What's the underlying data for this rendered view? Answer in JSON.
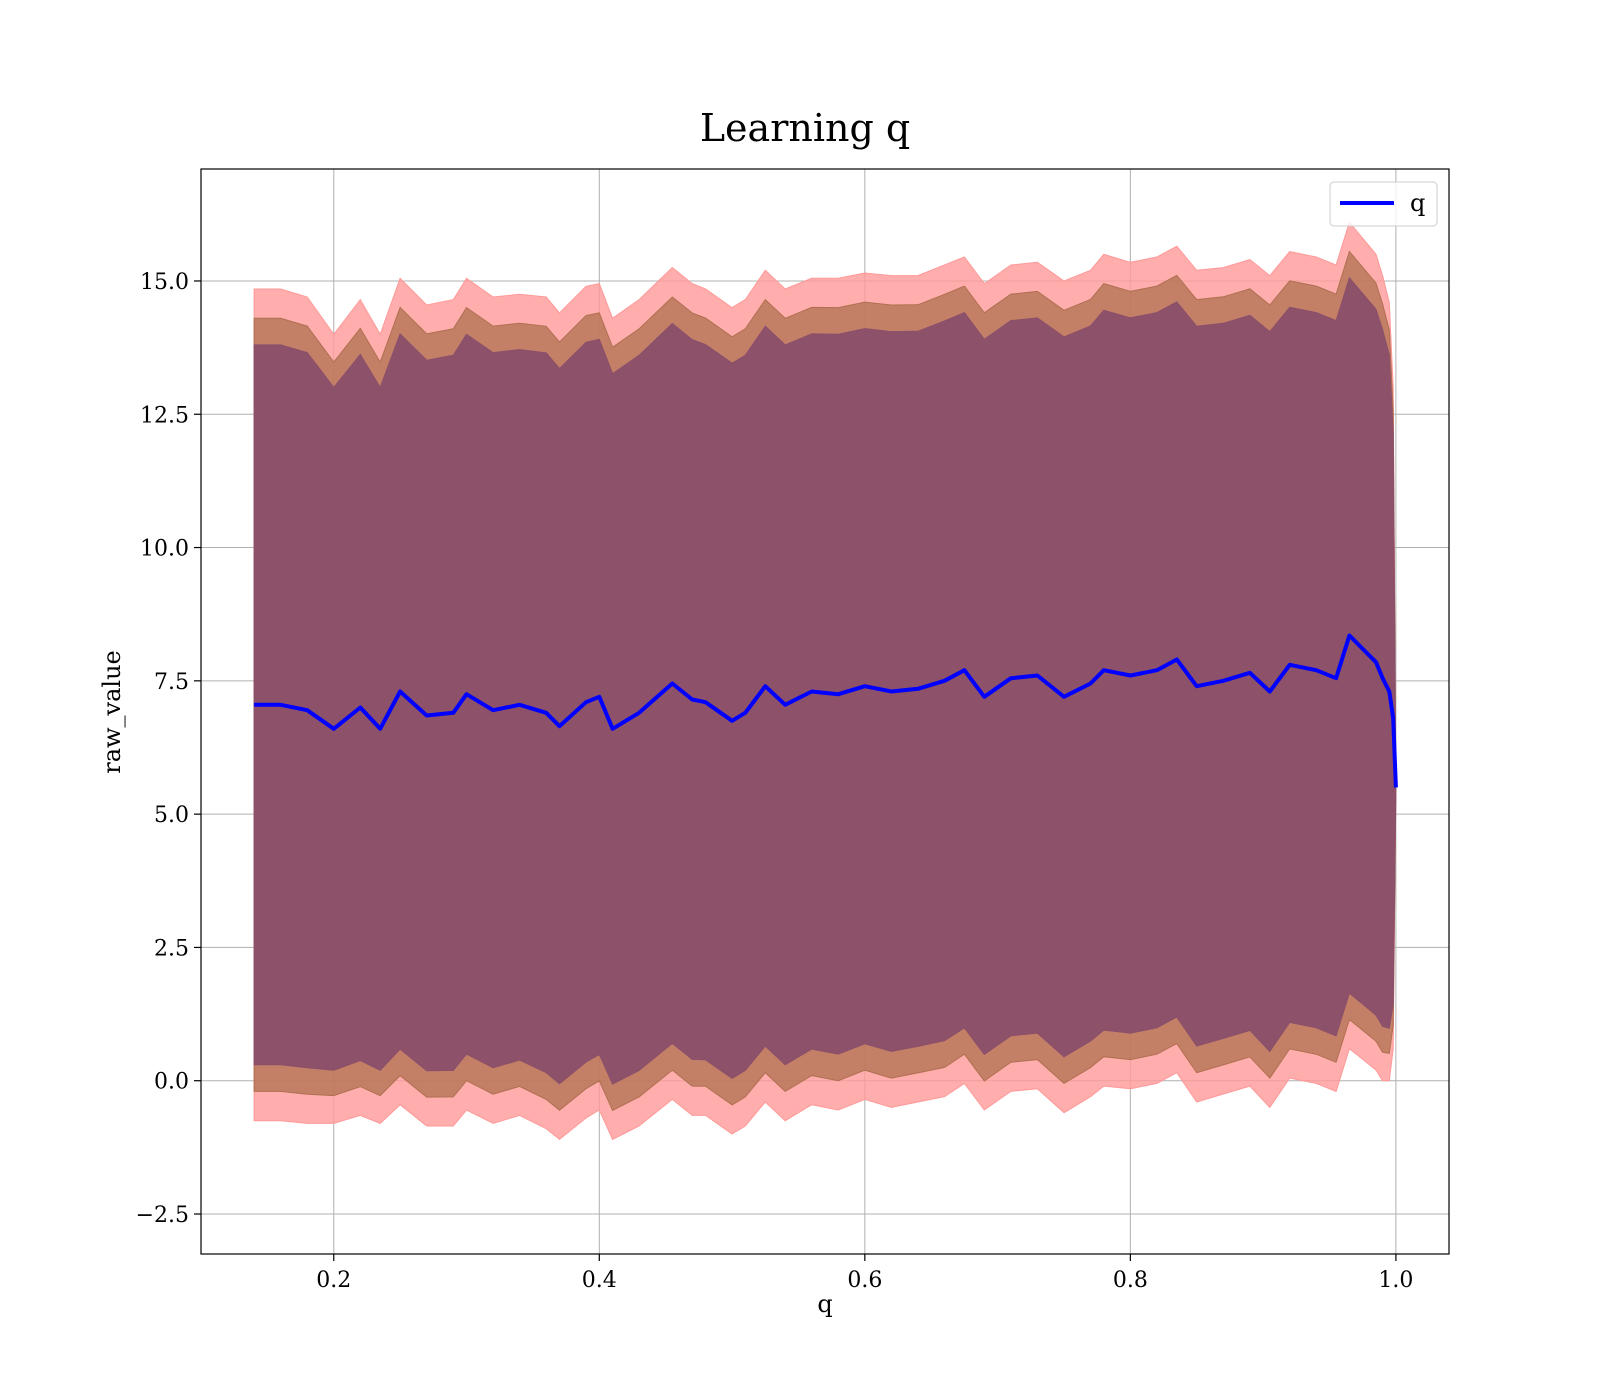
{
  "chart_data": {
    "type": "area",
    "title": "Learning q",
    "xlabel": "q",
    "ylabel": "raw_value",
    "xlim": [
      0.1,
      1.04
    ],
    "ylim": [
      -3.25,
      17.1
    ],
    "x_ticks": [
      0.2,
      0.4,
      0.6,
      0.8,
      1.0
    ],
    "x_tick_labels": [
      "0.2",
      "0.4",
      "0.6",
      "0.8",
      "1.0"
    ],
    "y_ticks": [
      -2.5,
      0.0,
      2.5,
      5.0,
      7.5,
      10.0,
      12.5,
      15.0
    ],
    "y_tick_labels": [
      "−2.5",
      "0.0",
      "2.5",
      "5.0",
      "7.5",
      "10.0",
      "12.5",
      "15.0"
    ],
    "grid": true,
    "legend": {
      "position": "top-right",
      "entries": [
        "q"
      ]
    },
    "series_color": "#0000ff",
    "band_colors": [
      "#ff9999",
      "#b07050",
      "#8a4f6a"
    ],
    "x": [
      0.14,
      0.16,
      0.18,
      0.2,
      0.22,
      0.235,
      0.25,
      0.27,
      0.29,
      0.3,
      0.32,
      0.34,
      0.36,
      0.37,
      0.39,
      0.4,
      0.41,
      0.43,
      0.455,
      0.47,
      0.48,
      0.5,
      0.51,
      0.525,
      0.54,
      0.56,
      0.58,
      0.6,
      0.62,
      0.64,
      0.66,
      0.675,
      0.69,
      0.71,
      0.73,
      0.75,
      0.77,
      0.78,
      0.8,
      0.82,
      0.835,
      0.85,
      0.87,
      0.89,
      0.905,
      0.92,
      0.94,
      0.955,
      0.965,
      0.975,
      0.985,
      0.99,
      0.995,
      0.998,
      1.0
    ],
    "series": [
      {
        "name": "q",
        "values": [
          7.05,
          7.05,
          6.95,
          6.6,
          7.0,
          6.6,
          7.3,
          6.85,
          6.9,
          7.25,
          6.95,
          7.05,
          6.9,
          6.65,
          7.1,
          7.2,
          6.6,
          6.9,
          7.45,
          7.15,
          7.1,
          6.75,
          6.9,
          7.4,
          7.05,
          7.3,
          7.25,
          7.4,
          7.3,
          7.35,
          7.5,
          7.7,
          7.2,
          7.55,
          7.6,
          7.2,
          7.45,
          7.7,
          7.6,
          7.7,
          7.9,
          7.4,
          7.5,
          7.65,
          7.3,
          7.8,
          7.7,
          7.55,
          8.35,
          8.1,
          7.85,
          7.55,
          7.3,
          6.8,
          5.5
        ]
      }
    ],
    "bands": [
      {
        "upper_offset": 7.8,
        "lower_offset": -7.8,
        "shape_upper": [
          7.8,
          7.8,
          7.75,
          7.4,
          7.65,
          7.4,
          7.75,
          7.7,
          7.75,
          7.8,
          7.75,
          7.7,
          7.8,
          7.75,
          7.8,
          7.75,
          7.7,
          7.75,
          7.8,
          7.8,
          7.75,
          7.75,
          7.75,
          7.8,
          7.8,
          7.75,
          7.8,
          7.75,
          7.8,
          7.75,
          7.8,
          7.75,
          7.75,
          7.75,
          7.75,
          7.8,
          7.75,
          7.8,
          7.75,
          7.75,
          7.75,
          7.8,
          7.75,
          7.75,
          7.8,
          7.75,
          7.75,
          7.75,
          7.75,
          7.7,
          7.65,
          7.55,
          7.3,
          6.2,
          0.0
        ]
      },
      {
        "upper_offset": 7.25,
        "lower_offset": -7.25
      },
      {
        "upper_offset": 6.75,
        "lower_offset": -6.75
      }
    ]
  }
}
